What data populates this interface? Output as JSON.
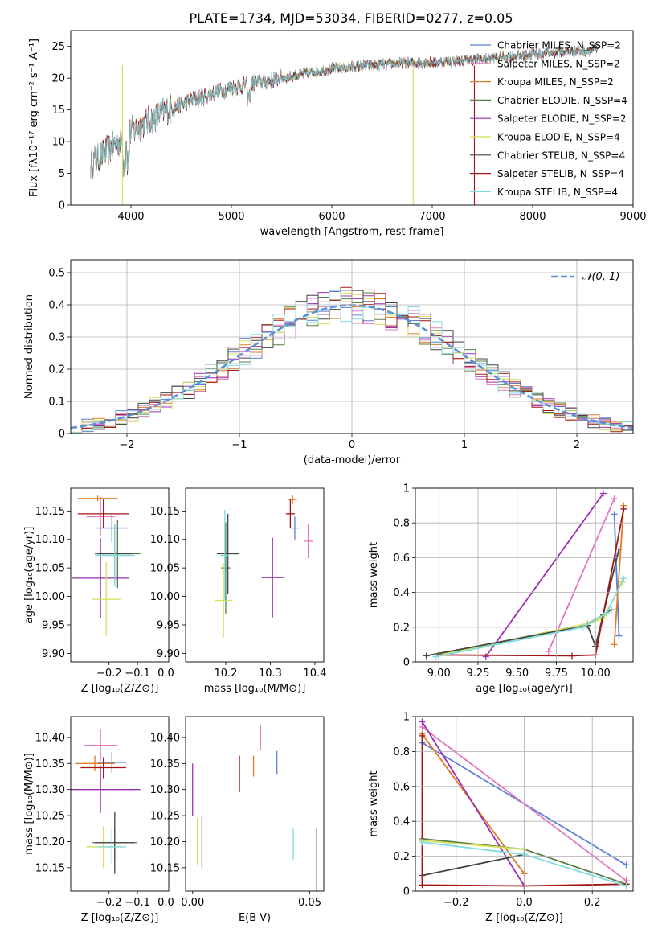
{
  "figure_title": "PLATE=1734, MJD=53034, FIBERID=0277, z=0.05",
  "chart_data": [
    {
      "type": "line",
      "panel": "spectrum",
      "xlabel": "wavelength [Angstrom, rest frame]",
      "ylabel": "Flux [fλ10⁻¹⁷ erg cm⁻² s⁻¹ A⁻¹]",
      "xlim": [
        3400,
        9000
      ],
      "ylim": [
        0,
        27.5
      ],
      "xticks": [
        4000,
        5000,
        6000,
        7000,
        8000,
        9000
      ],
      "yticks": [
        0,
        5,
        10,
        15,
        20,
        25
      ],
      "grid": false,
      "legend_position": "top-right",
      "spectrum_range_angstrom": [
        3600,
        8650
      ],
      "continuum_shape": {
        "x": [
          3600,
          3800,
          4000,
          4300,
          4600,
          5000,
          5500,
          6000,
          6500,
          7000,
          7500,
          8000,
          8650
        ],
        "y": [
          6.5,
          9.0,
          11.5,
          14.5,
          16.5,
          18.5,
          20.0,
          21.5,
          22.2,
          22.5,
          23.0,
          23.8,
          24.5
        ]
      },
      "series": [
        {
          "name": "Chabrier MILES, N_SSP=2",
          "color": "#5b7fd6"
        },
        {
          "name": "Salpeter MILES, N_SSP=2",
          "color": "#e377c2"
        },
        {
          "name": "Kroupa MILES, N_SSP=2",
          "color": "#e07b24"
        },
        {
          "name": "Chabrier ELODIE, N_SSP=4",
          "color": "#5a7d46"
        },
        {
          "name": "Salpeter ELODIE, N_SSP=2",
          "color": "#9b2fb0"
        },
        {
          "name": "Kroupa ELODIE, N_SSP=4",
          "color": "#d4e157"
        },
        {
          "name": "Chabrier STELIB, N_SSP=4",
          "color": "#444444"
        },
        {
          "name": "Salpeter STELIB, N_SSP=4",
          "color": "#a31515"
        },
        {
          "name": "Kroupa STELIB, N_SSP=4",
          "color": "#7fdde0"
        }
      ]
    },
    {
      "type": "line",
      "panel": "residuals",
      "xlabel": "(data-model)/error",
      "ylabel": "Normed distribution",
      "xlim": [
        -2.5,
        2.5
      ],
      "ylim": [
        0,
        0.54
      ],
      "xticks": [
        -2,
        -1,
        0,
        1,
        2
      ],
      "xtick_labels": [
        "−2",
        "−1",
        "0",
        "1",
        "2"
      ],
      "yticks": [
        0.0,
        0.1,
        0.2,
        0.3,
        0.4,
        0.5
      ],
      "grid": true,
      "legend_position": "top-right",
      "legend_entry": "𝒩(0, 1)",
      "bin_width": 0.1,
      "gaussian_color": "#5b8fd6",
      "histogram_series": 9
    },
    {
      "type": "scatter",
      "panel": "age-vs-Z",
      "xlabel": "Z [log₁₀(Z/Z⊙)]",
      "ylabel": "age  [log₁₀(age/yr)]",
      "xlim": [
        -0.335,
        0.01
      ],
      "ylim": [
        9.885,
        10.19
      ],
      "xticks": [
        -0.2,
        -0.1,
        0.0
      ],
      "xtick_labels": [
        "−0.2",
        "−0.1",
        "0.0"
      ],
      "yticks": [
        9.9,
        9.95,
        10.0,
        10.05,
        10.1,
        10.15
      ],
      "ytick_labels": [
        "9.90",
        "9.95",
        "10.00",
        "10.05",
        "10.10",
        "10.15"
      ],
      "grid": false,
      "points": [
        {
          "x": -0.19,
          "xerr": 0.055,
          "y": 10.12,
          "yerr": 0.025,
          "color": "#5b7fd6"
        },
        {
          "x": -0.23,
          "xerr": 0.05,
          "y": 10.14,
          "yerr": 0.035,
          "color": "#e377c2"
        },
        {
          "x": -0.24,
          "xerr": 0.07,
          "y": 10.172,
          "yerr": 0.005,
          "color": "#e07b24"
        },
        {
          "x": -0.17,
          "xerr": 0.08,
          "y": 10.075,
          "yerr": 0.06,
          "color": "#5a7d46"
        },
        {
          "x": -0.23,
          "xerr": 0.1,
          "y": 10.032,
          "yerr": 0.07,
          "color": "#9b2fb0"
        },
        {
          "x": -0.21,
          "xerr": 0.05,
          "y": 9.995,
          "yerr": 0.065,
          "color": "#d4e157"
        },
        {
          "x": -0.18,
          "xerr": 0.06,
          "y": 10.075,
          "yerr": 0.05,
          "color": "#444444"
        },
        {
          "x": -0.22,
          "xerr": 0.09,
          "y": 10.145,
          "yerr": 0.025,
          "color": "#a31515"
        },
        {
          "x": -0.18,
          "xerr": 0.07,
          "y": 10.072,
          "yerr": 0.055,
          "color": "#7fdde0"
        }
      ]
    },
    {
      "type": "scatter",
      "panel": "age-vs-mass",
      "xlabel": "mass [log₁₀(M/M⊙)]",
      "xlim": [
        10.11,
        10.42
      ],
      "ylim": [
        9.885,
        10.19
      ],
      "xticks": [
        10.2,
        10.3,
        10.4
      ],
      "xtick_labels": [
        "10.2",
        "10.3",
        "10.4"
      ],
      "yticks": [
        9.9,
        9.95,
        10.0,
        10.05,
        10.1,
        10.15
      ],
      "ytick_labels": [
        "9.90",
        "9.95",
        "10.00",
        "10.05",
        "10.10",
        "10.15"
      ],
      "grid": false,
      "points": [
        {
          "x": 10.355,
          "xerr": 0.01,
          "y": 10.12,
          "yerr": 0.02,
          "color": "#5b7fd6"
        },
        {
          "x": 10.385,
          "xerr": 0.01,
          "y": 10.097,
          "yerr": 0.03,
          "color": "#e377c2"
        },
        {
          "x": 10.35,
          "xerr": 0.01,
          "y": 10.17,
          "yerr": 0.008,
          "color": "#e07b24"
        },
        {
          "x": 10.2,
          "xerr": 0.01,
          "y": 10.05,
          "yerr": 0.08,
          "color": "#5a7d46"
        },
        {
          "x": 10.305,
          "xerr": 0.025,
          "y": 10.033,
          "yerr": 0.07,
          "color": "#9b2fb0"
        },
        {
          "x": 10.195,
          "xerr": 0.02,
          "y": 9.993,
          "yerr": 0.065,
          "color": "#d4e157"
        },
        {
          "x": 10.205,
          "xerr": 0.025,
          "y": 10.075,
          "yerr": 0.07,
          "color": "#444444"
        },
        {
          "x": 10.345,
          "xerr": 0.01,
          "y": 10.145,
          "yerr": 0.025,
          "color": "#a31515"
        },
        {
          "x": 10.198,
          "xerr": 0.01,
          "y": 10.072,
          "yerr": 0.08,
          "color": "#7fdde0"
        }
      ]
    },
    {
      "type": "line",
      "panel": "mass-weight-vs-age",
      "xlabel": "age  [log₁₀(age/yr)]",
      "ylabel": "mass weight",
      "xlim": [
        8.85,
        10.24
      ],
      "ylim": [
        0,
        1.0
      ],
      "xticks": [
        9.0,
        9.25,
        9.5,
        9.75,
        10.0
      ],
      "xtick_labels": [
        "9.00",
        "9.25",
        "9.50",
        "9.75",
        "10.00"
      ],
      "yticks": [
        0.0,
        0.2,
        0.4,
        0.6,
        0.8,
        1.0
      ],
      "grid": true,
      "series": [
        {
          "color": "#5b7fd6",
          "x": [
            10.12,
            10.15
          ],
          "y": [
            0.85,
            0.15
          ]
        },
        {
          "color": "#e377c2",
          "x": [
            9.7,
            10.12
          ],
          "y": [
            0.06,
            0.94
          ]
        },
        {
          "color": "#e07b24",
          "x": [
            10.12,
            10.18
          ],
          "y": [
            0.1,
            0.9
          ]
        },
        {
          "color": "#5a7d46",
          "x": [
            9.0,
            9.95,
            10.05,
            10.1
          ],
          "y": [
            0.04,
            0.22,
            0.27,
            0.3
          ]
        },
        {
          "color": "#9b2fb0",
          "x": [
            9.3,
            10.05
          ],
          "y": [
            0.03,
            0.97
          ]
        },
        {
          "color": "#d4e157",
          "x": [
            9.0,
            9.95,
            10.05,
            10.17
          ],
          "y": [
            0.04,
            0.22,
            0.25,
            0.46
          ]
        },
        {
          "color": "#444444",
          "x": [
            8.92,
            9.95,
            10.0,
            10.15
          ],
          "y": [
            0.035,
            0.21,
            0.09,
            0.65
          ]
        },
        {
          "color": "#a31515",
          "x": [
            9.0,
            9.85,
            10.0,
            10.18
          ],
          "y": [
            0.04,
            0.035,
            0.04,
            0.88
          ]
        },
        {
          "color": "#7fdde0",
          "x": [
            8.98,
            9.92,
            10.07,
            10.18
          ],
          "y": [
            0.03,
            0.2,
            0.28,
            0.48
          ]
        }
      ]
    },
    {
      "type": "scatter",
      "panel": "mass-vs-Z",
      "xlabel": "Z [log₁₀(Z/Z⊙)]",
      "ylabel": "mass [log₁₀(M/M⊙)]",
      "xlim": [
        -0.335,
        0.01
      ],
      "ylim": [
        10.105,
        10.44
      ],
      "xticks": [
        -0.2,
        -0.1,
        0.0
      ],
      "xtick_labels": [
        "−0.2",
        "−0.1",
        "0.0"
      ],
      "yticks": [
        10.15,
        10.2,
        10.25,
        10.3,
        10.35,
        10.4
      ],
      "ytick_labels": [
        "10.15",
        "10.20",
        "10.25",
        "10.30",
        "10.35",
        "10.40"
      ],
      "grid": false,
      "points": [
        {
          "x": -0.19,
          "xerr": 0.05,
          "y": 10.352,
          "yerr": 0.02,
          "color": "#5b7fd6"
        },
        {
          "x": -0.23,
          "xerr": 0.06,
          "y": 10.385,
          "yerr": 0.03,
          "color": "#e377c2"
        },
        {
          "x": -0.25,
          "xerr": 0.07,
          "y": 10.35,
          "yerr": 0.015,
          "color": "#e07b24"
        },
        {
          "x": -0.18,
          "xerr": 0.08,
          "y": 10.198,
          "yerr": 0.03,
          "color": "#5a7d46"
        },
        {
          "x": -0.23,
          "xerr": 0.14,
          "y": 10.3,
          "yerr": 0.045,
          "color": "#9b2fb0"
        },
        {
          "x": -0.22,
          "xerr": 0.06,
          "y": 10.19,
          "yerr": 0.04,
          "color": "#d4e157"
        },
        {
          "x": -0.18,
          "xerr": 0.07,
          "y": 10.198,
          "yerr": 0.06,
          "color": "#444444"
        },
        {
          "x": -0.22,
          "xerr": 0.08,
          "y": 10.342,
          "yerr": 0.02,
          "color": "#a31515"
        },
        {
          "x": -0.19,
          "xerr": 0.05,
          "y": 10.19,
          "yerr": 0.035,
          "color": "#7fdde0"
        }
      ]
    },
    {
      "type": "scatter",
      "panel": "mass-vs-EBV",
      "xlabel": "E(B-V)",
      "xlim": [
        -0.003,
        0.056
      ],
      "ylim": [
        10.105,
        10.44
      ],
      "xticks": [
        0.0,
        0.05
      ],
      "xtick_labels": [
        "0.00",
        "0.05"
      ],
      "yticks": [
        10.15,
        10.2,
        10.25,
        10.3,
        10.35,
        10.4
      ],
      "ytick_labels": [
        "10.15",
        "10.20",
        "10.25",
        "10.30",
        "10.35",
        "10.40"
      ],
      "grid": false,
      "points": [
        {
          "x": 0.036,
          "y": 10.352,
          "yerr": 0.022,
          "color": "#5b7fd6"
        },
        {
          "x": 0.029,
          "y": 10.4,
          "yerr": 0.025,
          "color": "#e377c2"
        },
        {
          "x": 0.026,
          "y": 10.345,
          "yerr": 0.02,
          "color": "#e07b24"
        },
        {
          "x": 0.004,
          "y": 10.2,
          "yerr": 0.05,
          "color": "#5a7d46"
        },
        {
          "x": 0.0,
          "y": 10.3,
          "yerr": 0.05,
          "color": "#9b2fb0"
        },
        {
          "x": 0.002,
          "y": 10.2,
          "yerr": 0.045,
          "color": "#d4e157"
        },
        {
          "x": 0.053,
          "y": 10.15,
          "yerr": 0.075,
          "color": "#444444"
        },
        {
          "x": 0.02,
          "y": 10.33,
          "yerr": 0.035,
          "color": "#a31515"
        },
        {
          "x": 0.043,
          "y": 10.195,
          "yerr": 0.03,
          "color": "#7fdde0"
        }
      ]
    },
    {
      "type": "line",
      "panel": "mass-weight-vs-Z",
      "xlabel": "Z [log₁₀(Z/Z⊙)]",
      "ylabel": "mass weight",
      "xlim": [
        -0.32,
        0.32
      ],
      "ylim": [
        0,
        1.0
      ],
      "xticks": [
        -0.2,
        0.0,
        0.2
      ],
      "xtick_labels": [
        "−0.2",
        "0.0",
        "0.2"
      ],
      "yticks": [
        0.0,
        0.2,
        0.4,
        0.6,
        0.8,
        1.0
      ],
      "grid": true,
      "series": [
        {
          "color": "#5b7fd6",
          "x": [
            -0.3,
            0.3
          ],
          "y": [
            0.85,
            0.15
          ]
        },
        {
          "color": "#e377c2",
          "x": [
            -0.3,
            0.3
          ],
          "y": [
            0.94,
            0.06
          ]
        },
        {
          "color": "#e07b24",
          "x": [
            -0.3,
            0.0
          ],
          "y": [
            0.9,
            0.1
          ]
        },
        {
          "color": "#5a7d46",
          "x": [
            -0.3,
            0.0,
            0.3
          ],
          "y": [
            0.3,
            0.24,
            0.04
          ]
        },
        {
          "color": "#9b2fb0",
          "x": [
            -0.3,
            0.0
          ],
          "y": [
            0.97,
            0.03
          ]
        },
        {
          "color": "#d4e157",
          "x": [
            -0.3,
            0.0
          ],
          "y": [
            0.29,
            0.24
          ]
        },
        {
          "color": "#444444",
          "x": [
            -0.3,
            0.0
          ],
          "y": [
            0.09,
            0.21
          ]
        },
        {
          "color": "#a31515",
          "x": [
            -0.3,
            -0.3,
            0.0,
            0.3
          ],
          "y": [
            0.89,
            0.035,
            0.03,
            0.04
          ]
        },
        {
          "color": "#7fdde0",
          "x": [
            -0.3,
            0.0,
            0.3
          ],
          "y": [
            0.28,
            0.21,
            0.03
          ]
        }
      ]
    }
  ]
}
